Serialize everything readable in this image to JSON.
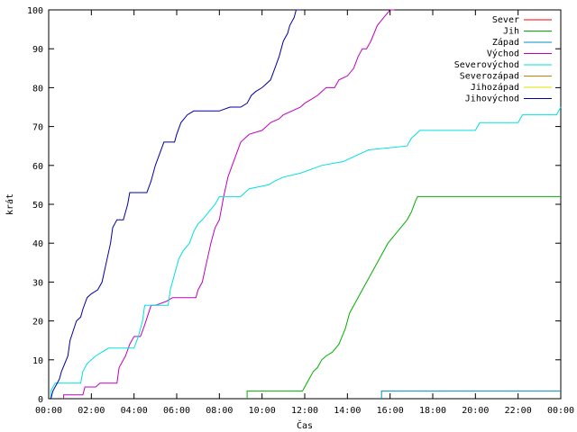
{
  "chart_data": {
    "type": "line",
    "xlabel": "Čas",
    "ylabel": "krát",
    "xlim": [
      0,
      24
    ],
    "ylim": [
      0,
      100
    ],
    "x_ticks": [
      {
        "value": 0,
        "label": "00:00"
      },
      {
        "value": 2,
        "label": "02:00"
      },
      {
        "value": 4,
        "label": "04:00"
      },
      {
        "value": 6,
        "label": "06:00"
      },
      {
        "value": 8,
        "label": "08:00"
      },
      {
        "value": 10,
        "label": "10:00"
      },
      {
        "value": 12,
        "label": "12:00"
      },
      {
        "value": 14,
        "label": "14:00"
      },
      {
        "value": 16,
        "label": "16:00"
      },
      {
        "value": 18,
        "label": "18:00"
      },
      {
        "value": 20,
        "label": "20:00"
      },
      {
        "value": 22,
        "label": "22:00"
      },
      {
        "value": 24,
        "label": "00:00"
      }
    ],
    "y_ticks": [
      0,
      10,
      20,
      30,
      40,
      50,
      60,
      70,
      80,
      90,
      100
    ],
    "grid": false,
    "legend_position": "top-right",
    "series": [
      {
        "name": "Sever",
        "color": "#ff0000",
        "points": []
      },
      {
        "name": "Jih",
        "color": "#00b000",
        "points": [
          [
            9.3,
            0
          ],
          [
            9.3,
            2
          ],
          [
            11.9,
            2
          ],
          [
            12.0,
            3
          ],
          [
            12.2,
            5
          ],
          [
            12.4,
            7
          ],
          [
            12.6,
            8
          ],
          [
            12.8,
            10
          ],
          [
            13.0,
            11
          ],
          [
            13.3,
            12
          ],
          [
            13.6,
            14
          ],
          [
            13.9,
            18
          ],
          [
            14.1,
            22
          ],
          [
            14.4,
            25
          ],
          [
            14.7,
            28
          ],
          [
            15.0,
            31
          ],
          [
            15.3,
            34
          ],
          [
            15.6,
            37
          ],
          [
            15.9,
            40
          ],
          [
            16.2,
            42
          ],
          [
            16.5,
            44
          ],
          [
            16.8,
            46
          ],
          [
            17.0,
            48
          ],
          [
            17.2,
            51
          ],
          [
            17.3,
            52
          ],
          [
            24.0,
            52
          ]
        ]
      },
      {
        "name": "Západ",
        "color": "#0090c0",
        "points": [
          [
            15.6,
            0
          ],
          [
            15.6,
            2
          ],
          [
            24.0,
            2
          ]
        ]
      },
      {
        "name": "Východ",
        "color": "#c000c0",
        "points": [
          [
            0.7,
            0
          ],
          [
            0.7,
            1
          ],
          [
            1.6,
            1
          ],
          [
            1.7,
            3
          ],
          [
            2.2,
            3
          ],
          [
            2.4,
            4
          ],
          [
            3.2,
            4
          ],
          [
            3.3,
            8
          ],
          [
            3.6,
            11
          ],
          [
            3.8,
            14
          ],
          [
            4.0,
            16
          ],
          [
            4.3,
            16
          ],
          [
            4.5,
            19
          ],
          [
            4.8,
            24
          ],
          [
            5.0,
            24
          ],
          [
            5.5,
            25
          ],
          [
            5.8,
            26
          ],
          [
            6.9,
            26
          ],
          [
            7.0,
            28
          ],
          [
            7.2,
            30
          ],
          [
            7.4,
            35
          ],
          [
            7.6,
            40
          ],
          [
            7.8,
            44
          ],
          [
            8.0,
            46
          ],
          [
            8.2,
            52
          ],
          [
            8.4,
            57
          ],
          [
            8.6,
            60
          ],
          [
            8.8,
            63
          ],
          [
            9.0,
            66
          ],
          [
            9.2,
            67
          ],
          [
            9.4,
            68
          ],
          [
            10.0,
            69
          ],
          [
            10.4,
            71
          ],
          [
            10.8,
            72
          ],
          [
            11.0,
            73
          ],
          [
            11.4,
            74
          ],
          [
            11.8,
            75
          ],
          [
            12.0,
            76
          ],
          [
            12.3,
            77
          ],
          [
            12.6,
            78
          ],
          [
            12.8,
            79
          ],
          [
            13.0,
            80
          ],
          [
            13.4,
            80
          ],
          [
            13.6,
            82
          ],
          [
            14.0,
            83
          ],
          [
            14.3,
            85
          ],
          [
            14.5,
            88
          ],
          [
            14.7,
            90
          ],
          [
            14.9,
            90
          ],
          [
            15.1,
            92
          ],
          [
            15.4,
            96
          ],
          [
            15.7,
            98
          ],
          [
            16.0,
            100
          ],
          [
            16.2,
            100
          ]
        ]
      },
      {
        "name": "Severovýchod",
        "color": "#00e0e0",
        "points": [
          [
            0.1,
            0
          ],
          [
            0.1,
            2
          ],
          [
            0.3,
            4
          ],
          [
            1.5,
            4
          ],
          [
            1.6,
            7
          ],
          [
            1.8,
            9
          ],
          [
            2.0,
            10
          ],
          [
            2.2,
            11
          ],
          [
            2.5,
            12
          ],
          [
            2.8,
            13
          ],
          [
            4.0,
            13
          ],
          [
            4.2,
            16
          ],
          [
            4.4,
            20
          ],
          [
            4.5,
            24
          ],
          [
            5.6,
            24
          ],
          [
            5.7,
            28
          ],
          [
            5.9,
            32
          ],
          [
            6.1,
            36
          ],
          [
            6.3,
            38
          ],
          [
            6.6,
            40
          ],
          [
            6.8,
            43
          ],
          [
            7.0,
            45
          ],
          [
            7.2,
            46
          ],
          [
            7.5,
            48
          ],
          [
            7.8,
            50
          ],
          [
            8.0,
            52
          ],
          [
            9.0,
            52
          ],
          [
            9.2,
            53
          ],
          [
            9.4,
            54
          ],
          [
            10.3,
            55
          ],
          [
            10.6,
            56
          ],
          [
            11.0,
            57
          ],
          [
            11.8,
            58
          ],
          [
            12.8,
            60
          ],
          [
            13.8,
            61
          ],
          [
            14.2,
            62
          ],
          [
            14.6,
            63
          ],
          [
            15.0,
            64
          ],
          [
            16.8,
            65
          ],
          [
            17.0,
            67
          ],
          [
            17.2,
            68
          ],
          [
            17.4,
            69
          ],
          [
            20.0,
            69
          ],
          [
            20.2,
            71
          ],
          [
            22.0,
            71
          ],
          [
            22.2,
            73
          ],
          [
            23.8,
            73
          ],
          [
            24.0,
            75
          ]
        ]
      },
      {
        "name": "Severozápad",
        "color": "#c08000",
        "points": []
      },
      {
        "name": "Jihozápad",
        "color": "#e0e000",
        "points": []
      },
      {
        "name": "Jihovýchod",
        "color": "#0000a0",
        "points": [
          [
            0.1,
            0
          ],
          [
            0.2,
            2
          ],
          [
            0.5,
            5
          ],
          [
            0.6,
            7
          ],
          [
            0.9,
            11
          ],
          [
            1.0,
            15
          ],
          [
            1.3,
            20
          ],
          [
            1.5,
            21
          ],
          [
            1.6,
            23
          ],
          [
            1.8,
            26
          ],
          [
            2.0,
            27
          ],
          [
            2.3,
            28
          ],
          [
            2.5,
            30
          ],
          [
            2.7,
            35
          ],
          [
            2.9,
            40
          ],
          [
            3.0,
            44
          ],
          [
            3.2,
            46
          ],
          [
            3.5,
            46
          ],
          [
            3.7,
            50
          ],
          [
            3.8,
            53
          ],
          [
            4.6,
            53
          ],
          [
            4.8,
            56
          ],
          [
            5.0,
            60
          ],
          [
            5.2,
            63
          ],
          [
            5.4,
            66
          ],
          [
            5.9,
            66
          ],
          [
            6.0,
            68
          ],
          [
            6.2,
            71
          ],
          [
            6.5,
            73
          ],
          [
            6.8,
            74
          ],
          [
            7.5,
            74
          ],
          [
            8.0,
            74
          ],
          [
            8.5,
            75
          ],
          [
            9.0,
            75
          ],
          [
            9.3,
            76
          ],
          [
            9.5,
            78
          ],
          [
            9.7,
            79
          ],
          [
            10.0,
            80
          ],
          [
            10.4,
            82
          ],
          [
            10.6,
            85
          ],
          [
            10.8,
            88
          ],
          [
            11.0,
            92
          ],
          [
            11.2,
            94
          ],
          [
            11.3,
            96
          ],
          [
            11.5,
            98
          ],
          [
            11.6,
            100
          ],
          [
            11.8,
            100
          ]
        ]
      }
    ]
  }
}
